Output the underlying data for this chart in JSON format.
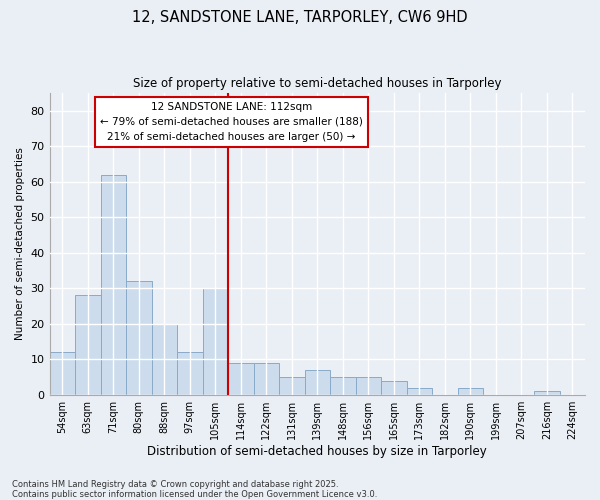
{
  "title_line1": "12, SANDSTONE LANE, TARPORLEY, CW6 9HD",
  "title_line2": "Size of property relative to semi-detached houses in Tarporley",
  "xlabel": "Distribution of semi-detached houses by size in Tarporley",
  "ylabel": "Number of semi-detached properties",
  "categories": [
    "54sqm",
    "63sqm",
    "71sqm",
    "80sqm",
    "88sqm",
    "97sqm",
    "105sqm",
    "114sqm",
    "122sqm",
    "131sqm",
    "139sqm",
    "148sqm",
    "156sqm",
    "165sqm",
    "173sqm",
    "182sqm",
    "190sqm",
    "199sqm",
    "207sqm",
    "216sqm",
    "224sqm"
  ],
  "values": [
    12,
    28,
    62,
    32,
    20,
    12,
    30,
    9,
    9,
    5,
    7,
    5,
    5,
    4,
    2,
    0,
    2,
    0,
    0,
    1,
    0
  ],
  "bar_color": "#ccdcec",
  "bar_edge_color": "#88aac8",
  "highlight_index": 6,
  "highlight_line_color": "#cc0000",
  "annotation_text": "12 SANDSTONE LANE: 112sqm\n← 79% of semi-detached houses are smaller (188)\n21% of semi-detached houses are larger (50) →",
  "annotation_box_color": "#ffffff",
  "annotation_box_edge": "#cc0000",
  "ylim": [
    0,
    85
  ],
  "yticks": [
    0,
    10,
    20,
    30,
    40,
    50,
    60,
    70,
    80
  ],
  "background_color": "#eaeef5",
  "grid_color": "#ffffff",
  "footnote": "Contains HM Land Registry data © Crown copyright and database right 2025.\nContains public sector information licensed under the Open Government Licence v3.0."
}
